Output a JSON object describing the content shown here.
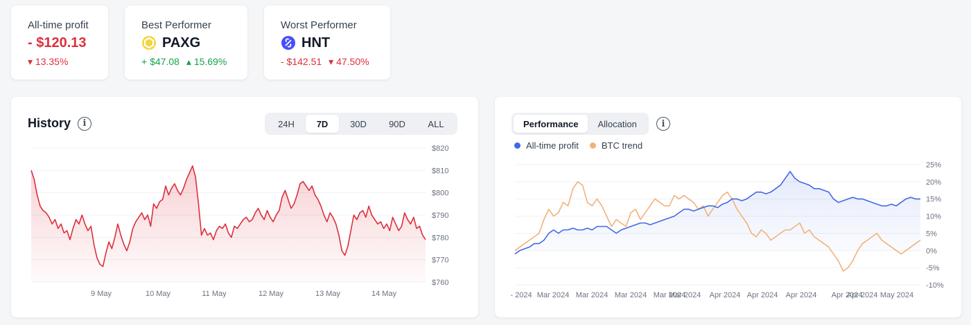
{
  "stats": {
    "all_time": {
      "label": "All-time profit",
      "value": "- $120.13",
      "change": "13.35%"
    },
    "best": {
      "label": "Best Performer",
      "symbol": "PAXG",
      "amount": "+ $47.08",
      "change": "15.69%"
    },
    "worst": {
      "label": "Worst Performer",
      "symbol": "HNT",
      "amount": "- $142.51",
      "change": "47.50%"
    }
  },
  "history": {
    "title": "History",
    "ranges": [
      "24H",
      "7D",
      "30D",
      "90D",
      "ALL"
    ],
    "active_range": "7D"
  },
  "performance": {
    "tabs": [
      "Performance",
      "Allocation"
    ],
    "active_tab": "Performance",
    "legend": [
      {
        "name": "All-time profit",
        "color": "#4169e1"
      },
      {
        "name": "BTC trend",
        "color": "#f0b27a"
      }
    ]
  },
  "colors": {
    "negative": "#dc2f3c",
    "positive": "#16a34a",
    "profit_line": "#4169e1",
    "btc_line": "#f0b27a"
  },
  "chart_data": [
    {
      "type": "area",
      "x_ticks": [
        "9 May",
        "10 May",
        "11 May",
        "12 May",
        "13 May",
        "14 May"
      ],
      "y_ticks": [
        "$820",
        "$810",
        "$800",
        "$790",
        "$780",
        "$770",
        "$760"
      ],
      "ylim": [
        760,
        820
      ],
      "series": [
        {
          "values": [
            810,
            806,
            799,
            794,
            792,
            791,
            789,
            786,
            788,
            784,
            786,
            782,
            783,
            779,
            784,
            788,
            786,
            790,
            786,
            783,
            785,
            777,
            771,
            768,
            767,
            773,
            778,
            775,
            780,
            786,
            781,
            777,
            774,
            778,
            784,
            787,
            789,
            791,
            788,
            790,
            785,
            795,
            793,
            796,
            797,
            803,
            799,
            802,
            804,
            801,
            799,
            802,
            806,
            809,
            812,
            807,
            795,
            781,
            784,
            781,
            782,
            779,
            783,
            785,
            784,
            786,
            782,
            780,
            785,
            784,
            786,
            788,
            789,
            787,
            788,
            791,
            793,
            790,
            788,
            792,
            789,
            787,
            790,
            792,
            798,
            801,
            797,
            793,
            795,
            799,
            804,
            805,
            803,
            801,
            803,
            799,
            797,
            794,
            790,
            787,
            791,
            789,
            786,
            781,
            774,
            772,
            776,
            783,
            790,
            788,
            791,
            792,
            789,
            794,
            790,
            788,
            786,
            787,
            784,
            786,
            783,
            789,
            786,
            783,
            785,
            791,
            788,
            786,
            789,
            784,
            785,
            781,
            779
          ]
        }
      ]
    },
    {
      "type": "line",
      "x_ticks": [
        "- 2024",
        "Mar 2024",
        "Mar 2024",
        "Mar 2024",
        "Mar 2024",
        "Mar 2024",
        "Apr 2024",
        "Apr 2024",
        "Apr 2024",
        "Apr 2024",
        "Apr 2024",
        "May 2024",
        "May 2024"
      ],
      "y_ticks": [
        "25%",
        "20%",
        "15%",
        "10%",
        "5%",
        "0%",
        "-5%",
        "-10%"
      ],
      "ylim": [
        -10,
        25
      ],
      "series": [
        {
          "name": "All-time profit",
          "values": [
            -1,
            0,
            0.5,
            1,
            2,
            2,
            3,
            5,
            6,
            5,
            6,
            6,
            6.5,
            6,
            6,
            6.5,
            6,
            7,
            7,
            7,
            6,
            5,
            6,
            6.5,
            7,
            7.5,
            8,
            8,
            7.5,
            8,
            8.5,
            9,
            9.5,
            10,
            11,
            12,
            12,
            11.5,
            12,
            12.5,
            13,
            13,
            12.5,
            13.5,
            14,
            15,
            15,
            14.5,
            15,
            16,
            17,
            17,
            16.5,
            17,
            18,
            19,
            21,
            23,
            21,
            20,
            19.5,
            19,
            18,
            18,
            17.5,
            17,
            15,
            14,
            14.5,
            15,
            15.5,
            15,
            15,
            14.5,
            14,
            13.5,
            13,
            13,
            13.5,
            13,
            14,
            15,
            15.5,
            15,
            15
          ]
        },
        {
          "name": "BTC trend",
          "values": [
            0,
            1,
            2,
            3,
            4,
            5,
            9,
            12,
            10,
            11,
            14,
            13,
            18,
            20,
            19,
            14,
            13,
            15,
            13,
            10,
            7,
            9,
            8,
            7,
            11,
            12,
            9,
            11,
            13,
            15,
            14,
            13,
            13,
            16,
            15,
            16,
            15,
            14,
            12,
            13,
            10,
            12,
            14,
            16,
            17,
            15,
            12,
            10,
            8,
            5,
            4,
            6,
            5,
            3,
            4,
            5,
            6,
            6,
            7,
            8,
            5,
            6,
            4,
            3,
            2,
            1,
            -1,
            -3,
            -6,
            -5,
            -3,
            0,
            2,
            3,
            4,
            5,
            3,
            2,
            1,
            0,
            -1,
            0,
            1,
            2,
            3
          ]
        }
      ]
    }
  ]
}
